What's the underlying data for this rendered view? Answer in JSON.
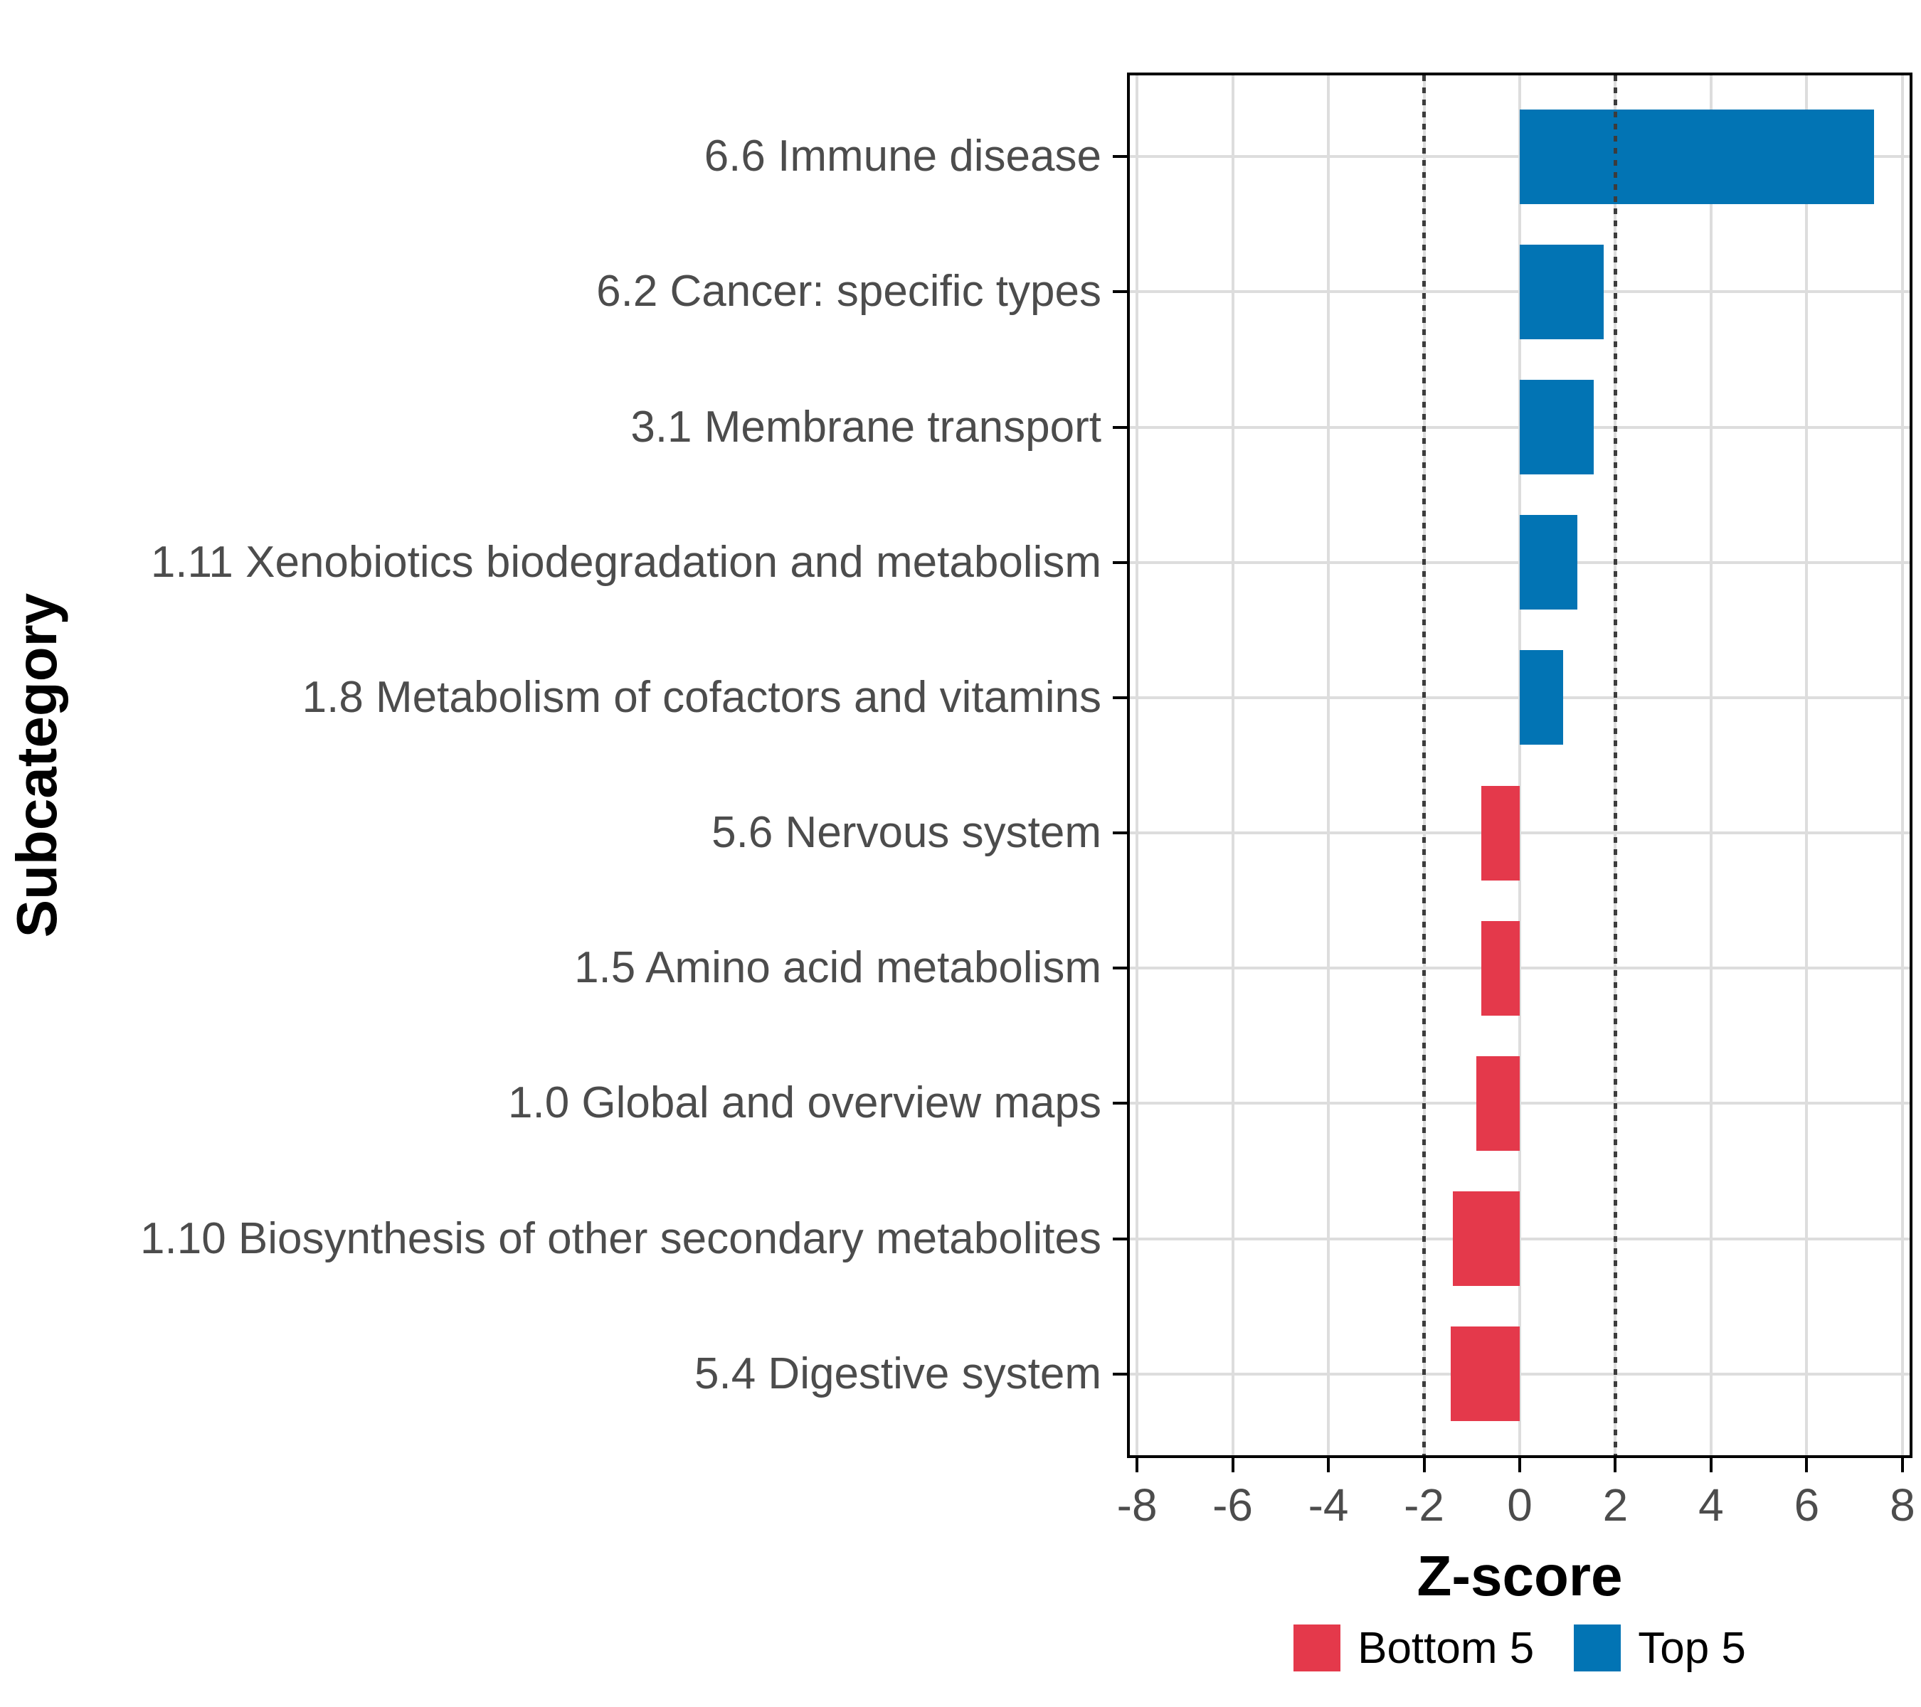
{
  "chart_data": {
    "type": "bar",
    "orientation": "horizontal",
    "title": "",
    "xlabel": "Z-score",
    "ylabel": "Subcategory",
    "categories": [
      "6.6 Immune disease",
      "6.2 Cancer: specific types",
      "3.1 Membrane transport",
      "1.11 Xenobiotics biodegradation and metabolism",
      "1.8 Metabolism of cofactors and vitamins",
      "5.6 Nervous system",
      "1.5 Amino acid metabolism",
      "1.0 Global and overview maps",
      "1.10 Biosynthesis of other secondary metabolites",
      "5.4 Digestive system"
    ],
    "values": [
      7.4,
      1.75,
      1.55,
      1.2,
      0.9,
      -0.8,
      -0.8,
      -0.9,
      -1.4,
      -1.45
    ],
    "groups": [
      "Top 5",
      "Top 5",
      "Top 5",
      "Top 5",
      "Top 5",
      "Bottom 5",
      "Bottom 5",
      "Bottom 5",
      "Bottom 5",
      "Bottom 5"
    ],
    "group_colors": {
      "Top 5": "#0274B4",
      "Bottom 5": "#E4394B"
    },
    "xlim": [
      -8.15,
      8.15
    ],
    "x_ticks": [
      -8,
      -6,
      -4,
      -2,
      0,
      2,
      4,
      6,
      8
    ],
    "x_tick_labels": [
      "-8",
      "-6",
      "-4",
      "-2",
      "0",
      "2",
      "4",
      "6",
      "8"
    ],
    "reference_lines": {
      "values": [
        -2,
        2
      ],
      "style": "dotted",
      "color": "#3C3C3C"
    },
    "grid": {
      "show": true,
      "color": "#DDDDDD"
    },
    "bar_width_fraction": 0.7,
    "legend_position": "bottom",
    "legend": [
      {
        "label": "Bottom 5",
        "color": "#E4394B"
      },
      {
        "label": "Top 5",
        "color": "#0274B4"
      }
    ]
  },
  "style": {
    "panel_border": "#000000",
    "tick_label_color": "#4C4C4C",
    "axis_title_color": "#000000",
    "gridline_color": "#DDDDDD",
    "background": "#FFFFFF"
  }
}
